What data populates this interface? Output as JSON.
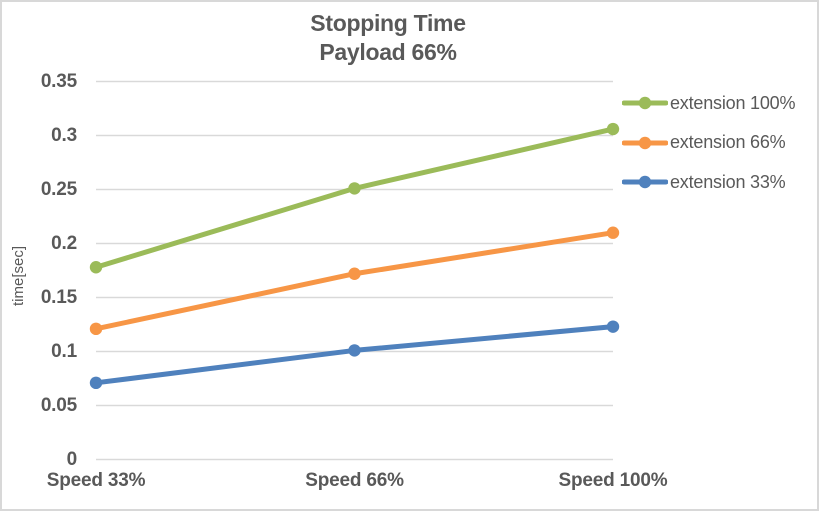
{
  "colors": {
    "green": "#9BBB59",
    "orange": "#F79646",
    "blue": "#4F81BD",
    "grid": "#D9D9D9",
    "text": "#595959",
    "frame_border": "#D8D8D8"
  },
  "chart_data": {
    "type": "line",
    "title": "Stopping Time",
    "subtitle": "Payload 66%",
    "categories": [
      "Speed 33%",
      "Speed 66%",
      "Speed 100%"
    ],
    "series": [
      {
        "name": "extension 100%",
        "color": "#9BBB59",
        "values": [
          0.178,
          0.251,
          0.306
        ]
      },
      {
        "name": "extension 66%",
        "color": "#F79646",
        "values": [
          0.121,
          0.172,
          0.21
        ]
      },
      {
        "name": "extension 33%",
        "color": "#4F81BD",
        "values": [
          0.071,
          0.101,
          0.123
        ]
      }
    ],
    "xlabel": "",
    "ylabel": "time[sec]",
    "ylim": [
      0,
      0.35
    ],
    "ytick_step": 0.05,
    "yticks": [
      "0",
      "0.05",
      "0.1",
      "0.15",
      "0.2",
      "0.25",
      "0.3",
      "0.35"
    ],
    "grid": "horizontal-only",
    "legend_position": "right",
    "markers": "circle"
  }
}
